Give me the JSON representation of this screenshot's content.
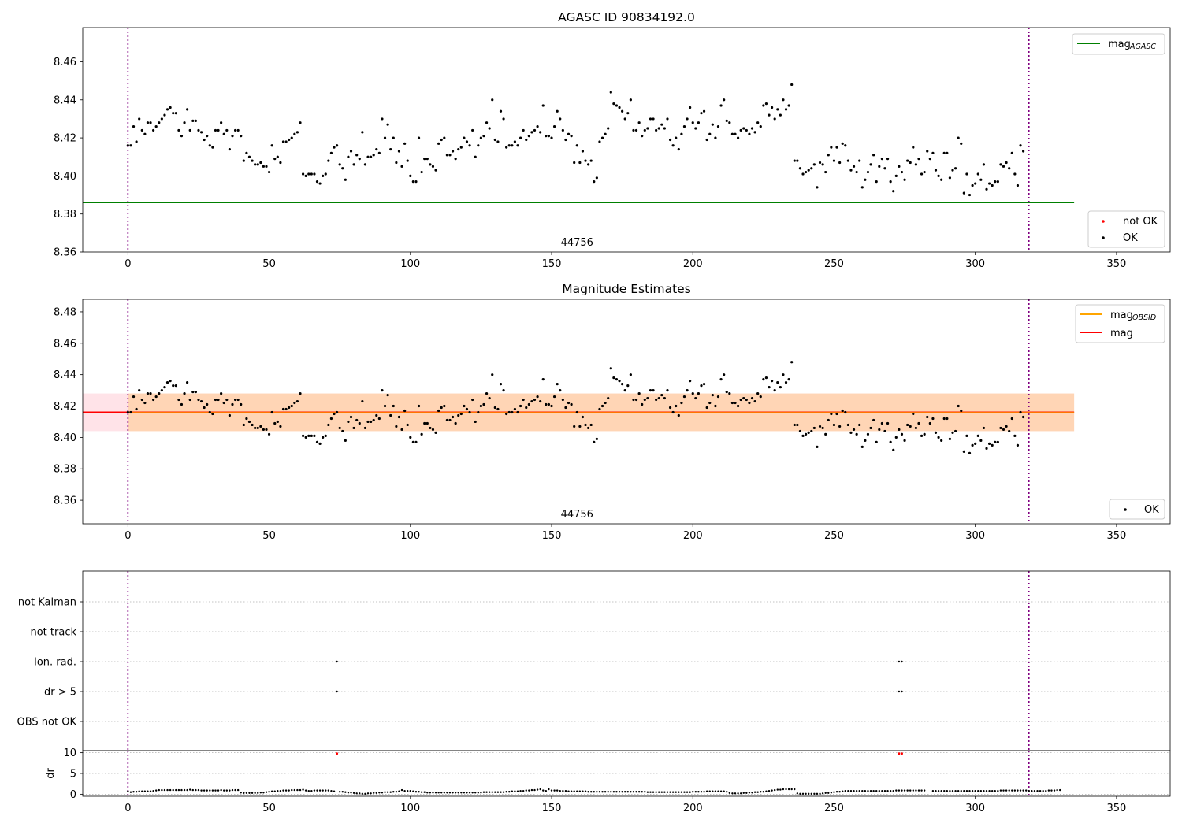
{
  "chart_data": [
    {
      "type": "scatter",
      "title": "AGASC ID 90834192.0",
      "xlim": [
        -16,
        369
      ],
      "ylim": [
        8.36,
        8.478
      ],
      "xticks": [
        0,
        50,
        100,
        150,
        200,
        250,
        300,
        350
      ],
      "yticks": [
        8.36,
        8.38,
        8.4,
        8.42,
        8.44,
        8.46
      ],
      "vlines": [
        0,
        319
      ],
      "obsid_label": "44756",
      "obsid_label_x": 159,
      "hline": {
        "name": "mag_AGASC",
        "value": 8.386,
        "x": [
          -16,
          335
        ],
        "color": "#008000"
      },
      "legend_lines": [
        {
          "label": "mag",
          "sub": "AGASC",
          "color": "#008000"
        }
      ],
      "legend_points": [
        {
          "label": "not OK",
          "color": "#ff0000"
        },
        {
          "label": "OK",
          "color": "#000000"
        }
      ],
      "series": [
        {
          "name": "OK",
          "color": "#000000",
          "x_start": 0,
          "x_step": 1,
          "values": [
            8.416,
            8.416,
            8.426,
            8.418,
            8.43,
            8.424,
            8.422,
            8.428,
            8.428,
            8.424,
            8.426,
            8.428,
            8.43,
            8.432,
            8.435,
            8.436,
            8.433,
            8.433,
            8.424,
            8.421,
            8.428,
            8.435,
            8.424,
            8.429,
            8.429,
            8.424,
            8.423,
            8.419,
            8.421,
            8.416,
            8.415,
            8.424,
            8.424,
            8.428,
            8.422,
            8.424,
            8.414,
            8.421,
            8.424,
            8.424,
            8.421,
            8.408,
            8.412,
            8.41,
            8.408,
            8.406,
            8.406,
            8.407,
            8.405,
            8.405,
            8.402,
            8.416,
            8.409,
            8.41,
            8.407,
            8.418,
            8.418,
            8.419,
            8.42,
            8.422,
            8.423,
            8.428,
            8.401,
            8.4,
            8.401,
            8.401,
            8.401,
            8.397,
            8.396,
            8.4,
            8.401,
            8.408,
            8.412,
            8.415,
            8.416,
            8.406,
            8.404,
            8.398,
            8.41,
            8.413,
            8.406,
            8.411,
            8.409,
            8.423,
            8.406,
            8.41,
            8.41,
            8.411,
            8.414,
            8.412,
            8.43,
            8.42,
            8.427,
            8.414,
            8.42,
            8.407,
            8.413,
            8.405,
            8.417,
            8.408,
            8.4,
            8.397,
            8.397,
            8.42,
            8.402,
            8.409,
            8.409,
            8.406,
            8.405,
            8.403,
            8.417,
            8.419,
            8.42,
            8.411,
            8.411,
            8.413,
            8.409,
            8.414,
            8.415,
            8.42,
            8.418,
            8.416,
            8.424,
            8.41,
            8.416,
            8.42,
            8.421,
            8.428,
            8.425,
            8.44,
            8.419,
            8.418,
            8.434,
            8.43,
            8.415,
            8.416,
            8.416,
            8.418,
            8.416,
            8.42,
            8.424,
            8.419,
            8.421,
            8.423,
            8.424,
            8.426,
            8.423,
            8.437,
            8.421,
            8.421,
            8.42,
            8.426,
            8.434,
            8.43,
            8.424,
            8.419,
            8.422,
            8.421,
            8.407,
            8.416,
            8.407,
            8.413,
            8.408,
            8.406,
            8.408,
            8.397,
            8.399,
            8.418,
            8.42,
            8.422,
            8.425,
            8.444,
            8.438,
            8.437,
            8.436,
            8.434,
            8.43,
            8.433,
            8.44,
            8.424,
            8.424,
            8.428,
            8.421,
            8.424,
            8.425,
            8.43,
            8.43,
            8.424,
            8.425,
            8.427,
            8.425,
            8.43,
            8.419,
            8.416,
            8.42,
            8.414,
            8.422,
            8.426,
            8.43,
            8.436,
            8.428,
            8.425,
            8.428,
            8.433,
            8.434,
            8.419,
            8.422,
            8.427,
            8.42,
            8.426,
            8.437,
            8.44,
            8.429,
            8.428,
            8.422,
            8.422,
            8.42,
            8.424,
            8.425,
            8.424,
            8.422,
            8.425,
            8.423,
            8.428,
            8.426,
            8.437,
            8.438,
            8.432,
            8.436,
            8.43,
            8.435,
            8.432,
            8.44,
            8.435,
            8.437,
            8.448,
            8.408,
            8.408,
            8.404,
            8.401,
            8.402,
            8.403,
            8.404,
            8.406,
            8.394,
            8.407,
            8.406,
            8.402,
            8.411,
            8.415,
            8.408,
            8.415,
            8.407,
            8.417,
            8.416,
            8.408,
            8.403,
            8.405,
            8.402,
            8.408,
            8.394,
            8.398,
            8.402,
            8.406,
            8.411,
            8.397,
            8.405,
            8.409,
            8.404,
            8.409,
            8.397,
            8.392,
            8.4,
            8.405,
            8.402,
            8.398,
            8.408,
            8.407,
            8.415,
            8.406,
            8.409,
            8.401,
            8.402,
            8.413,
            8.409,
            8.412,
            8.403,
            8.4,
            8.398,
            8.412,
            8.412,
            8.399,
            8.403,
            8.404,
            8.42,
            8.417,
            8.391,
            8.401,
            8.39,
            8.395,
            8.396,
            8.401,
            8.398,
            8.406,
            8.393,
            8.396,
            8.395,
            8.397,
            8.397,
            8.406,
            8.405,
            8.407,
            8.404,
            8.412,
            8.401,
            8.395,
            8.416,
            8.413
          ]
        }
      ]
    },
    {
      "type": "scatter",
      "title": "Magnitude Estimates",
      "xlim": [
        -16,
        369
      ],
      "ylim": [
        8.345,
        8.488
      ],
      "xticks": [
        0,
        50,
        100,
        150,
        200,
        250,
        300,
        350
      ],
      "yticks": [
        8.36,
        8.38,
        8.4,
        8.42,
        8.44,
        8.46,
        8.48
      ],
      "vlines": [
        0,
        319
      ],
      "obsid_label": "44756",
      "obsid_label_x": 159,
      "hline": {
        "name": "mag",
        "value": 8.416,
        "x": [
          -16,
          335
        ],
        "color": "#ff0000"
      },
      "band": {
        "lower": 8.404,
        "upper": 8.428,
        "x": [
          -16,
          335
        ],
        "color": "#ffc0cb"
      },
      "band_obsid": {
        "lower": 8.404,
        "upper": 8.428,
        "x": [
          0,
          335
        ],
        "color": "#ffa500"
      },
      "legend_lines": [
        {
          "label": "mag",
          "sub": "OBSID",
          "color": "#ffa500"
        },
        {
          "label": "mag",
          "sub": "",
          "color": "#ff0000"
        }
      ],
      "legend_points": [
        {
          "label": "OK",
          "color": "#000000"
        }
      ]
    },
    {
      "type": "scatter",
      "xlim": [
        -16,
        369
      ],
      "vlines": [
        0,
        319
      ],
      "flag_labels": [
        "OBS not OK",
        "dr > 5",
        "Ion. rad.",
        "not track",
        "not Kalman"
      ],
      "flags": [
        {
          "label": "dr > 5",
          "x": [
            74,
            273,
            274
          ]
        },
        {
          "label": "Ion. rad.",
          "x": [
            74,
            273,
            274
          ]
        }
      ]
    },
    {
      "type": "scatter",
      "ylabel": "dr",
      "xlim": [
        -16,
        369
      ],
      "ylim": [
        -0.5,
        10.5
      ],
      "xticks": [
        0,
        50,
        100,
        150,
        200,
        250,
        300,
        350
      ],
      "yticks": [
        0,
        5,
        10
      ],
      "vlines": [
        0,
        319
      ],
      "dr_not_ok": {
        "color": "#ff0000",
        "x": [
          74,
          273,
          274
        ],
        "y": [
          9.8,
          9.8,
          9.8
        ]
      },
      "dr_ok": {
        "color": "#000000",
        "x_start": 0,
        "x_step": 1,
        "values": [
          0.7,
          0.5,
          0.6,
          0.6,
          0.7,
          0.7,
          0.7,
          0.7,
          0.7,
          0.8,
          0.9,
          1.0,
          1.0,
          1.0,
          1.0,
          1.0,
          1.0,
          1.0,
          1.0,
          1.0,
          1.0,
          1.0,
          1.1,
          1.0,
          1.0,
          1.0,
          0.9,
          0.9,
          0.9,
          0.9,
          0.9,
          0.9,
          0.9,
          1.0,
          0.9,
          0.9,
          0.9,
          1.0,
          1.0,
          1.0,
          0.4,
          0.3,
          0.3,
          0.3,
          0.3,
          0.3,
          0.3,
          0.4,
          0.4,
          0.5,
          0.6,
          0.7,
          0.7,
          0.8,
          0.8,
          0.9,
          0.9,
          0.9,
          1.0,
          1.0,
          1.0,
          1.0,
          1.1,
          0.9,
          0.8,
          0.8,
          0.9,
          0.9,
          0.9,
          0.9,
          0.9,
          0.9,
          0.8,
          0.7,
          null,
          0.6,
          0.6,
          0.5,
          0.4,
          0.4,
          0.3,
          0.2,
          0.2,
          0.1,
          0.1,
          0.2,
          0.2,
          0.3,
          0.3,
          0.4,
          0.4,
          0.5,
          0.5,
          0.5,
          0.6,
          0.6,
          0.7,
          1.0,
          0.8,
          0.8,
          0.8,
          0.7,
          0.6,
          0.6,
          0.5,
          0.5,
          0.4,
          0.4,
          0.4,
          0.4,
          0.4,
          0.4,
          0.4,
          0.4,
          0.4,
          0.4,
          0.4,
          0.4,
          0.4,
          0.4,
          0.4,
          0.4,
          0.4,
          0.4,
          0.4,
          0.4,
          0.5,
          0.5,
          0.5,
          0.5,
          0.5,
          0.5,
          0.5,
          0.5,
          0.6,
          0.6,
          0.7,
          0.7,
          0.7,
          0.8,
          0.8,
          0.9,
          0.9,
          1.0,
          1.0,
          1.1,
          1.2,
          0.9,
          0.8,
          1.2,
          0.9,
          0.9,
          0.9,
          0.8,
          0.8,
          0.8,
          0.7,
          0.7,
          0.7,
          0.7,
          0.7,
          0.7,
          0.7,
          0.6,
          0.6,
          0.6,
          0.6,
          0.6,
          0.6,
          0.6,
          0.6,
          0.6,
          0.6,
          0.6,
          0.6,
          0.6,
          0.6,
          0.6,
          0.6,
          0.6,
          0.6,
          0.6,
          0.6,
          0.6,
          0.5,
          0.5,
          0.5,
          0.5,
          0.5,
          0.5,
          0.5,
          0.5,
          0.5,
          0.5,
          0.5,
          0.5,
          0.5,
          0.5,
          0.5,
          0.5,
          0.6,
          0.6,
          0.6,
          0.6,
          0.6,
          0.7,
          0.7,
          0.7,
          0.7,
          0.7,
          0.7,
          0.7,
          0.6,
          0.3,
          0.2,
          0.2,
          0.2,
          0.2,
          0.3,
          0.3,
          0.4,
          0.4,
          0.5,
          0.5,
          0.6,
          0.6,
          0.7,
          0.8,
          0.9,
          1.0,
          1.1,
          1.1,
          1.2,
          1.2,
          1.2,
          1.2,
          1.2,
          0.2,
          0.1,
          0.1,
          0.1,
          0.1,
          0.1,
          0.1,
          0.1,
          0.1,
          0.2,
          0.3,
          0.3,
          0.4,
          0.5,
          0.6,
          0.6,
          0.7,
          0.8,
          0.8,
          0.8,
          0.8,
          0.8,
          0.8,
          0.8,
          0.8,
          0.8,
          0.8,
          0.8,
          0.8,
          0.8,
          0.8,
          0.8,
          0.8,
          0.8,
          0.8,
          0.9,
          0.9,
          0.9,
          0.9,
          0.9,
          0.9,
          0.9,
          0.9,
          0.9,
          0.9,
          0.9,
          null,
          null,
          0.8,
          0.8,
          0.8,
          0.8,
          0.8,
          0.8,
          0.8,
          0.8,
          0.8,
          0.8,
          0.8,
          0.8,
          0.8,
          0.8,
          0.8,
          0.8,
          0.8,
          0.8,
          0.8,
          0.8,
          0.8,
          0.8,
          0.8,
          0.8,
          0.9,
          0.9,
          0.9,
          0.9,
          0.9,
          0.9,
          0.9,
          0.9,
          0.9,
          0.9,
          0.8,
          0.8,
          0.8,
          0.8,
          0.8,
          0.8,
          0.8,
          0.9,
          0.9,
          0.9,
          1.0,
          1.0
        ]
      }
    }
  ]
}
